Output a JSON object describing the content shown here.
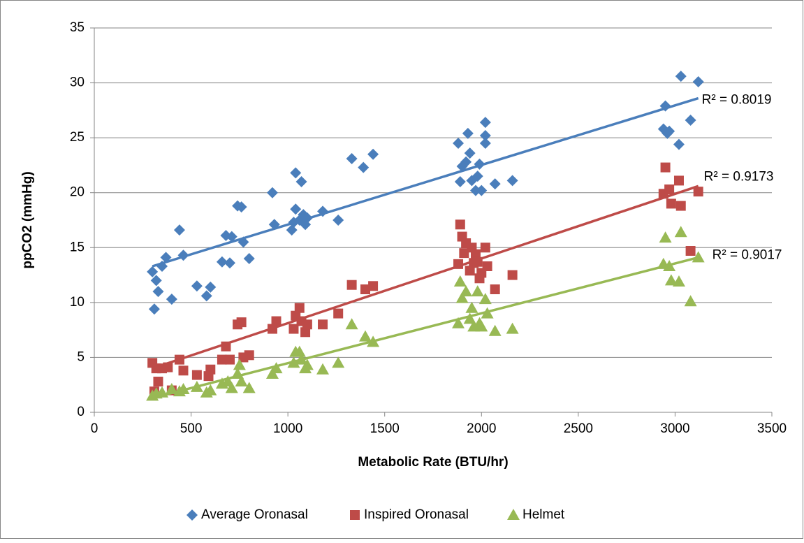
{
  "chart_data": {
    "type": "scatter",
    "x_label": "Metabolic Rate (BTU/hr)",
    "y_label": "ppCO2 (mmHg)",
    "xlim": [
      0,
      3500
    ],
    "xticks": [
      0,
      500,
      1000,
      1500,
      2000,
      2500,
      3000,
      3500
    ],
    "ylim": [
      0,
      35
    ],
    "yticks": [
      0,
      5,
      10,
      15,
      20,
      25,
      30,
      35
    ],
    "grid": true,
    "legend": "bottom",
    "series": [
      {
        "name": "Average Oronasal",
        "color": "#4a7ebb",
        "marker": "diamond",
        "x": [
          300,
          310,
          320,
          330,
          350,
          370,
          400,
          440,
          460,
          530,
          580,
          600,
          660,
          680,
          700,
          710,
          740,
          760,
          770,
          800,
          920,
          930,
          1020,
          1030,
          1040,
          1040,
          1060,
          1070,
          1080,
          1090,
          1100,
          1180,
          1260,
          1330,
          1390,
          1440,
          1880,
          1890,
          1900,
          1920,
          1930,
          1940,
          1950,
          1970,
          1980,
          1990,
          2000,
          2020,
          2020,
          2020,
          2070,
          2160,
          2940,
          2950,
          2960,
          2970,
          3020,
          3030,
          3080,
          3120
        ],
        "values": [
          12.8,
          9.4,
          12,
          11,
          13.3,
          14.1,
          10.3,
          16.6,
          14.3,
          11.5,
          10.6,
          11.4,
          13.7,
          16.1,
          13.6,
          16,
          18.8,
          18.7,
          15.5,
          14,
          20,
          17.1,
          16.6,
          17.3,
          21.8,
          18.5,
          17.5,
          21,
          18,
          17.1,
          17.7,
          18.3,
          17.5,
          23.1,
          22.3,
          23.5,
          24.5,
          21,
          22.4,
          22.8,
          25.4,
          23.6,
          21.1,
          20.2,
          21.5,
          22.6,
          20.2,
          26.4,
          25.2,
          24.5,
          20.8,
          21.1,
          25.8,
          27.9,
          25.4,
          25.6,
          24.4,
          30.6,
          26.6,
          30.1
        ],
        "trendline": {
          "x": [
            300,
            3120
          ],
          "y": [
            13.3,
            28.6
          ],
          "label": "R² = 0.8019"
        }
      },
      {
        "name": "Inspired Oronasal",
        "color": "#be4b48",
        "marker": "square",
        "x": [
          300,
          310,
          320,
          330,
          350,
          380,
          400,
          440,
          460,
          530,
          590,
          600,
          660,
          680,
          700,
          740,
          760,
          770,
          800,
          920,
          940,
          1030,
          1040,
          1060,
          1070,
          1090,
          1100,
          1180,
          1260,
          1330,
          1400,
          1440,
          1880,
          1890,
          1900,
          1910,
          1920,
          1940,
          1950,
          1960,
          1970,
          1980,
          1990,
          2000,
          2020,
          2030,
          2070,
          2160,
          2940,
          2950,
          2970,
          2980,
          3020,
          3030,
          3080,
          3120
        ],
        "values": [
          4.5,
          1.9,
          4,
          2.8,
          4,
          4.1,
          2,
          4.8,
          3.8,
          3.4,
          3.3,
          3.9,
          4.8,
          6,
          4.8,
          8,
          8.2,
          5,
          5.2,
          7.6,
          8.3,
          7.6,
          8.8,
          9.5,
          8.3,
          7.3,
          8,
          8,
          9,
          11.6,
          11.2,
          11.5,
          13.5,
          17.1,
          16,
          14.5,
          15.4,
          12.9,
          15,
          13.6,
          14.4,
          13.7,
          12.2,
          12.7,
          15,
          13.3,
          11.2,
          12.5,
          19.9,
          22.3,
          20.3,
          19,
          21.1,
          18.8,
          14.7,
          20.1
        ],
        "trendline": {
          "x": [
            300,
            3120
          ],
          "y": [
            4.0,
            20.6
          ],
          "label": "R² = 0.9173"
        }
      },
      {
        "name": "Helmet",
        "color": "#98b954",
        "marker": "triangle",
        "x": [
          300,
          320,
          350,
          400,
          440,
          460,
          530,
          580,
          600,
          660,
          690,
          710,
          740,
          750,
          760,
          800,
          920,
          940,
          1030,
          1040,
          1060,
          1070,
          1090,
          1100,
          1180,
          1260,
          1330,
          1400,
          1440,
          1880,
          1890,
          1900,
          1920,
          1940,
          1950,
          1960,
          1980,
          1990,
          2000,
          2020,
          2030,
          2070,
          2160,
          2940,
          2950,
          2970,
          2980,
          3020,
          3030,
          3080,
          3120
        ],
        "values": [
          1.5,
          1.7,
          1.8,
          2.1,
          1.9,
          2.1,
          2.3,
          1.8,
          2,
          2.6,
          2.8,
          2.2,
          3.5,
          4.3,
          2.8,
          2.2,
          3.5,
          4,
          4.5,
          5.5,
          5.5,
          4.8,
          4,
          4.3,
          3.9,
          4.5,
          8,
          6.9,
          6.4,
          8.1,
          11.9,
          10.4,
          11,
          8.5,
          9.5,
          7.8,
          11,
          8.1,
          7.8,
          10.3,
          9,
          7.4,
          7.6,
          13.5,
          15.9,
          13.3,
          12,
          11.9,
          16.4,
          10.1,
          14.1
        ],
        "trendline": {
          "x": [
            300,
            3120
          ],
          "y": [
            1.3,
            14.1
          ],
          "label": "R² = 0.9017"
        }
      }
    ]
  }
}
